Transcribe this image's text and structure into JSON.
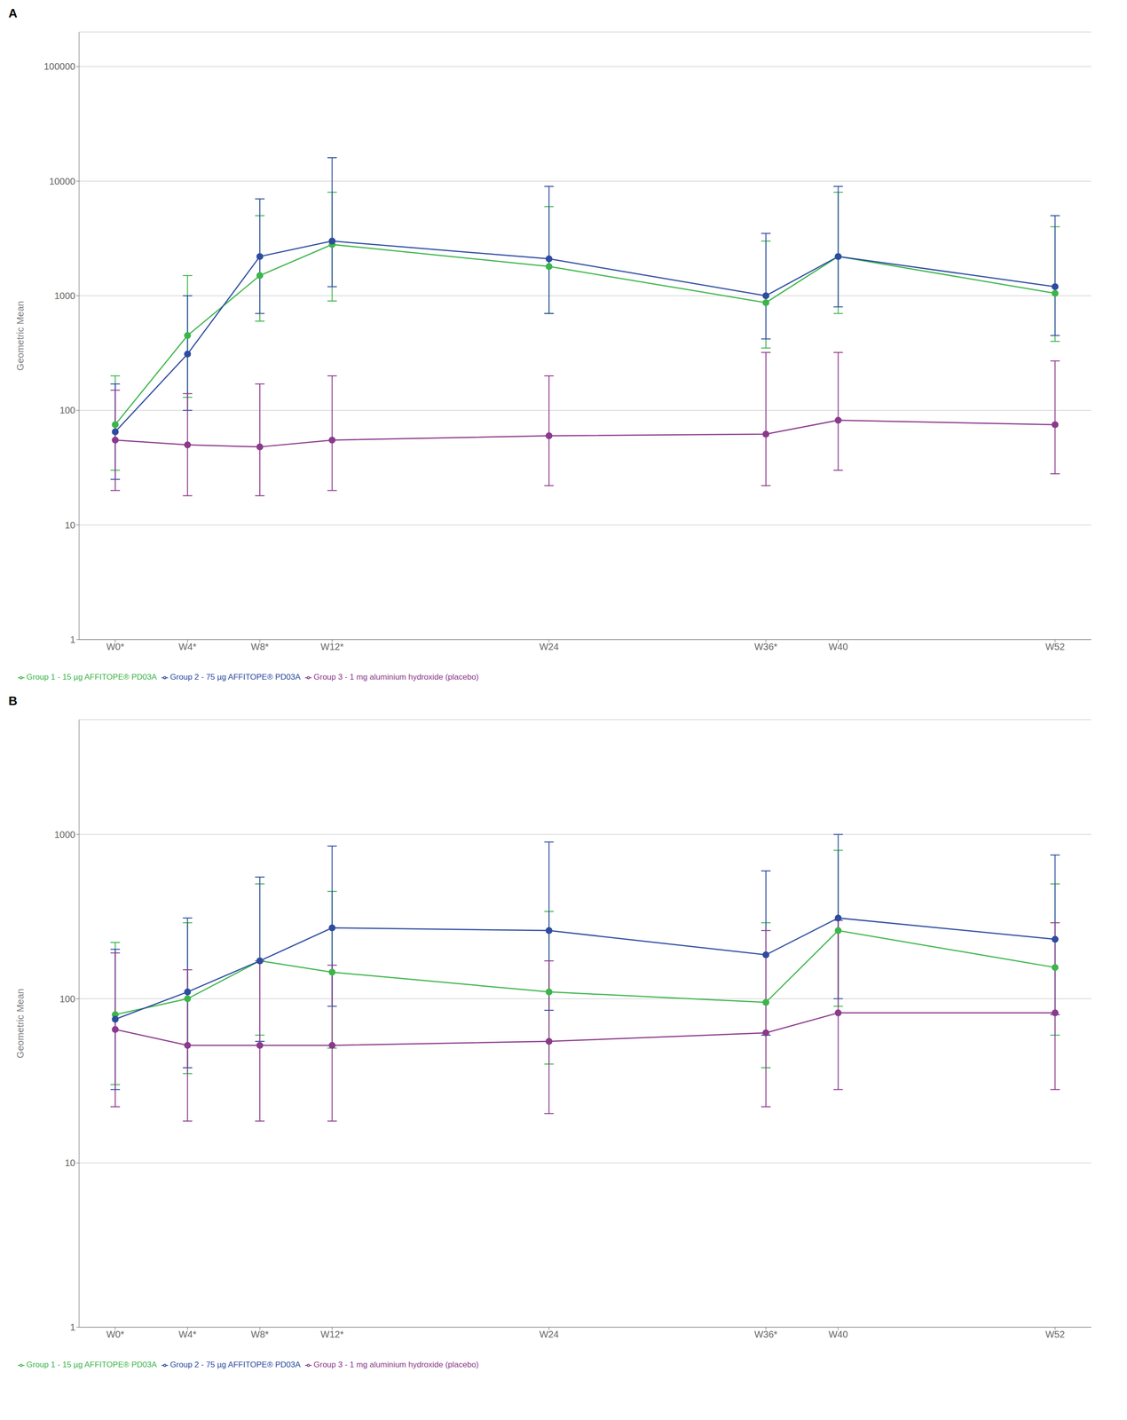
{
  "chart_data": [
    {
      "type": "line",
      "title": "A",
      "y_label": "Geometric Mean",
      "log": "y",
      "grid": "y",
      "legend": "bottom",
      "x": [
        0,
        4,
        8,
        12,
        24,
        36,
        40,
        52
      ],
      "xlim": [
        -2,
        54
      ],
      "xticks": [
        {
          "value": 0,
          "label": "W0*"
        },
        {
          "value": 4,
          "label": "W4*"
        },
        {
          "value": 8,
          "label": "W8*"
        },
        {
          "value": 12,
          "label": "W12*"
        },
        {
          "value": 24,
          "label": "W24"
        },
        {
          "value": 36,
          "label": "W36*"
        },
        {
          "value": 40,
          "label": "W40"
        },
        {
          "value": 52,
          "label": "W52"
        }
      ],
      "ylim": [
        1,
        200000
      ],
      "yticks": [
        1,
        10,
        100,
        1000,
        10000,
        100000
      ],
      "series": [
        {
          "name": "Group 1 - 15 µg AFFITOPE® PD03A",
          "color": "#3cb54a",
          "marker": "o",
          "line_style": "solid",
          "values": [
            75,
            450,
            1500,
            2800,
            1800,
            870,
            2200,
            1050
          ],
          "yerr_low": [
            30,
            130,
            600,
            900,
            700,
            350,
            700,
            400
          ],
          "yerr_high": [
            200,
            1500,
            5000,
            8000,
            6000,
            3000,
            8000,
            4000
          ]
        },
        {
          "name": "Group 2 - 75 µg AFFITOPE® PD03A",
          "color": "#2e4ca0",
          "marker": "o",
          "line_style": "solid",
          "values": [
            65,
            310,
            2200,
            3000,
            2100,
            1000,
            2200,
            1200
          ],
          "yerr_low": [
            25,
            100,
            700,
            1200,
            700,
            420,
            800,
            450
          ],
          "yerr_high": [
            170,
            1000,
            7000,
            16000,
            9000,
            3500,
            9000,
            5000
          ]
        },
        {
          "name": "Group 3 - 1 mg aluminium hydroxide (placebo)",
          "color": "#8b3a8b",
          "marker": "o",
          "line_style": "solid",
          "values": [
            55,
            50,
            48,
            55,
            60,
            62,
            82,
            75
          ],
          "yerr_low": [
            20,
            18,
            18,
            20,
            22,
            22,
            30,
            28
          ],
          "yerr_high": [
            150,
            140,
            170,
            200,
            200,
            320,
            320,
            270
          ]
        }
      ]
    },
    {
      "type": "line",
      "title": "B",
      "y_label": "Geometric Mean",
      "log": "y",
      "grid": "y",
      "legend": "bottom",
      "x": [
        0,
        4,
        8,
        12,
        24,
        36,
        40,
        52
      ],
      "xlim": [
        -2,
        54
      ],
      "xticks": [
        {
          "value": 0,
          "label": "W0*"
        },
        {
          "value": 4,
          "label": "W4*"
        },
        {
          "value": 8,
          "label": "W8*"
        },
        {
          "value": 12,
          "label": "W12*"
        },
        {
          "value": 24,
          "label": "W24"
        },
        {
          "value": 36,
          "label": "W36*"
        },
        {
          "value": 40,
          "label": "W40"
        },
        {
          "value": 52,
          "label": "W52"
        }
      ],
      "ylim": [
        1,
        5000
      ],
      "yticks": [
        1,
        10,
        100,
        1000
      ],
      "series": [
        {
          "name": "Group 1 - 15 µg AFFITOPE® PD03A",
          "color": "#3cb54a",
          "marker": "o",
          "line_style": "solid",
          "values": [
            80,
            100,
            170,
            145,
            110,
            95,
            260,
            155
          ],
          "yerr_low": [
            30,
            35,
            60,
            50,
            40,
            38,
            90,
            60
          ],
          "yerr_high": [
            220,
            290,
            500,
            450,
            340,
            290,
            800,
            500
          ]
        },
        {
          "name": "Group 2 - 75 µg AFFITOPE® PD03A",
          "color": "#2e4ca0",
          "marker": "o",
          "line_style": "solid",
          "values": [
            75,
            110,
            170,
            270,
            260,
            185,
            310,
            230
          ],
          "yerr_low": [
            28,
            38,
            55,
            90,
            85,
            60,
            100,
            80
          ],
          "yerr_high": [
            200,
            310,
            550,
            850,
            900,
            600,
            1000,
            750
          ]
        },
        {
          "name": "Group 3 - 1 mg aluminium hydroxide (placebo)",
          "color": "#8b3a8b",
          "marker": "o",
          "line_style": "solid",
          "values": [
            65,
            52,
            52,
            52,
            55,
            62,
            82,
            82
          ],
          "yerr_low": [
            22,
            18,
            18,
            18,
            20,
            22,
            28,
            28
          ],
          "yerr_high": [
            190,
            150,
            170,
            160,
            170,
            260,
            300,
            290
          ]
        }
      ]
    }
  ]
}
